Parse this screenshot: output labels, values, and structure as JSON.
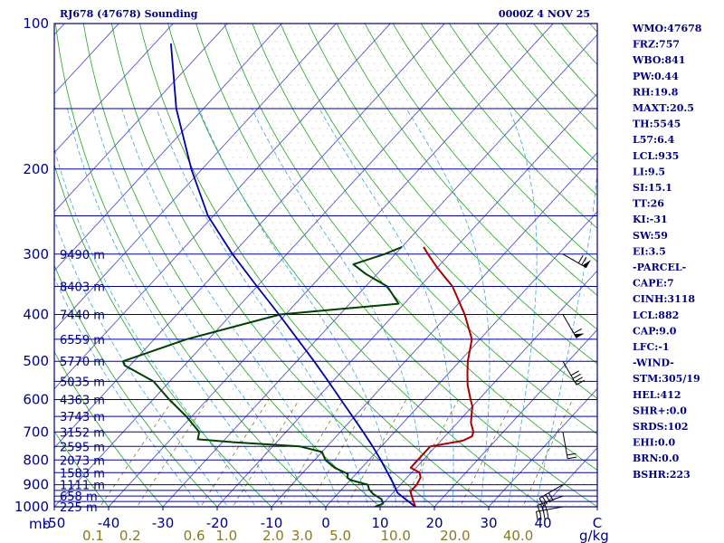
{
  "header": {
    "station": "RJ678 (47678) Sounding",
    "time": "0000Z  4 NOV 25"
  },
  "axis": {
    "p_unit": "mb",
    "mix_unit": "g/kg"
  },
  "indices": [
    "WMO:47678",
    "FRZ:757",
    "WBO:841",
    "PW:0.44",
    "RH:19.8",
    "MAXT:20.5",
    "TH:5545",
    "L57:6.4",
    "LCL:935",
    "LI:9.5",
    "SI:15.1",
    "TT:26",
    "KI:-31",
    "SW:59",
    "EI:3.5",
    "-PARCEL-",
    "CAPE:7",
    "CINH:3118",
    "LCL:882",
    "CAP:9.0",
    "LFC:-1",
    "-WIND-",
    "STM:305/19",
    "HEL:412",
    "SHR+:0.0",
    "SRDS:102",
    "EHI:0.0",
    "BRN:0.0",
    "BSHR:223"
  ],
  "chart_data": {
    "type": "line",
    "title": "RJ678 (47678) Sounding",
    "subtitle": "0000Z  4 NOV 25",
    "ylabel": "mb",
    "xlabel": "",
    "p_range": [
      1000,
      100
    ],
    "t_range": [
      -50,
      50
    ],
    "log_pressure": true,
    "grid": true,
    "pressure_ticks": [
      {
        "p": 100,
        "label": "100"
      },
      {
        "p": 200,
        "label": "200"
      },
      {
        "p": 300,
        "label": "300"
      },
      {
        "p": 400,
        "label": "400"
      },
      {
        "p": 500,
        "label": "500"
      },
      {
        "p": 600,
        "label": "600"
      },
      {
        "p": 700,
        "label": "700"
      },
      {
        "p": 800,
        "label": "800"
      },
      {
        "p": 900,
        "label": "900"
      },
      {
        "p": 1000,
        "label": "1000"
      }
    ],
    "temperature_ticks": [
      {
        "t": -50,
        "label": "-50"
      },
      {
        "t": -40,
        "label": "-40"
      },
      {
        "t": -30,
        "label": "-30"
      },
      {
        "t": -20,
        "label": "-20"
      },
      {
        "t": -10,
        "label": "-10"
      },
      {
        "t": 0,
        "label": "0"
      },
      {
        "t": 10,
        "label": "10"
      },
      {
        "t": 20,
        "label": "20"
      },
      {
        "t": 30,
        "label": "30"
      },
      {
        "t": 40,
        "label": "40"
      },
      {
        "t": 50,
        "label": "C"
      }
    ],
    "mixing_ratio_labels": [
      "0.1",
      "0.2",
      "0.6",
      "1.0",
      "2.0",
      "3.0",
      "5.0",
      "10.0",
      "20.0",
      "40.0"
    ],
    "height_labels": [
      {
        "p": 300,
        "label": "9490 m"
      },
      {
        "p": 350,
        "label": "8403 m"
      },
      {
        "p": 400,
        "label": "7440 m"
      },
      {
        "p": 450,
        "label": "6559 m"
      },
      {
        "p": 500,
        "label": "5770 m"
      },
      {
        "p": 550,
        "label": "5035 m"
      },
      {
        "p": 600,
        "label": "4363 m"
      },
      {
        "p": 650,
        "label": "3743 m"
      },
      {
        "p": 700,
        "label": "3152 m"
      },
      {
        "p": 750,
        "label": "2595 m"
      },
      {
        "p": 800,
        "label": "2073 m"
      },
      {
        "p": 850,
        "label": "1583 m"
      },
      {
        "p": 900,
        "label": "1111 m"
      },
      {
        "p": 950,
        "label": "658 m"
      },
      {
        "p": 1000,
        "label": "225 m"
      }
    ],
    "temperature_profile": {
      "color": "#aa0000",
      "points": [
        {
          "p": 1000,
          "t": 16.5
        },
        {
          "p": 980,
          "t": 15.5
        },
        {
          "p": 960,
          "t": 14.5
        },
        {
          "p": 930,
          "t": 13
        },
        {
          "p": 900,
          "t": 13
        },
        {
          "p": 870,
          "t": 12.5
        },
        {
          "p": 850,
          "t": 11.5
        },
        {
          "p": 830,
          "t": 9
        },
        {
          "p": 800,
          "t": 9
        },
        {
          "p": 780,
          "t": 9
        },
        {
          "p": 750,
          "t": 9
        },
        {
          "p": 730,
          "t": 14
        },
        {
          "p": 715,
          "t": 15
        },
        {
          "p": 700,
          "t": 14.5
        },
        {
          "p": 670,
          "t": 12.5
        },
        {
          "p": 640,
          "t": 11
        },
        {
          "p": 620,
          "t": 10
        },
        {
          "p": 600,
          "t": 8.5
        },
        {
          "p": 560,
          "t": 5.5
        },
        {
          "p": 530,
          "t": 3.5
        },
        {
          "p": 500,
          "t": 1.5
        },
        {
          "p": 450,
          "t": -1.5
        },
        {
          "p": 400,
          "t": -7
        },
        {
          "p": 350,
          "t": -14
        },
        {
          "p": 320,
          "t": -20
        },
        {
          "p": 300,
          "t": -24
        },
        {
          "p": 290,
          "t": -26
        }
      ]
    },
    "dewpoint_profile": {
      "color": "#004000",
      "points": [
        {
          "p": 1000,
          "t": 9
        },
        {
          "p": 985,
          "t": 10
        },
        {
          "p": 965,
          "t": 9
        },
        {
          "p": 940,
          "t": 6.5
        },
        {
          "p": 920,
          "t": 5
        },
        {
          "p": 900,
          "t": 4
        },
        {
          "p": 880,
          "t": 0
        },
        {
          "p": 870,
          "t": -1
        },
        {
          "p": 855,
          "t": -1.5
        },
        {
          "p": 830,
          "t": -5
        },
        {
          "p": 800,
          "t": -8
        },
        {
          "p": 770,
          "t": -10
        },
        {
          "p": 750,
          "t": -15
        },
        {
          "p": 735,
          "t": -28
        },
        {
          "p": 725,
          "t": -35
        },
        {
          "p": 700,
          "t": -36
        },
        {
          "p": 650,
          "t": -41
        },
        {
          "p": 600,
          "t": -47
        },
        {
          "p": 550,
          "t": -53
        },
        {
          "p": 510,
          "t": -61
        },
        {
          "p": 500,
          "t": -62
        },
        {
          "p": 450,
          "t": -54
        },
        {
          "p": 400,
          "t": -41
        },
        {
          "p": 380,
          "t": -21
        },
        {
          "p": 350,
          "t": -26
        },
        {
          "p": 330,
          "t": -32
        },
        {
          "p": 315,
          "t": -36
        },
        {
          "p": 300,
          "t": -32
        },
        {
          "p": 290,
          "t": -30
        }
      ]
    },
    "parcel_profile": {
      "color": "#0000a0",
      "points": [
        {
          "p": 1000,
          "t": 16.5
        },
        {
          "p": 960,
          "t": 13
        },
        {
          "p": 935,
          "t": 10.8
        },
        {
          "p": 900,
          "t": 8.8
        },
        {
          "p": 850,
          "t": 5.6
        },
        {
          "p": 800,
          "t": 2.2
        },
        {
          "p": 750,
          "t": -1.6
        },
        {
          "p": 700,
          "t": -5.8
        },
        {
          "p": 650,
          "t": -10.4
        },
        {
          "p": 600,
          "t": -15.4
        },
        {
          "p": 550,
          "t": -20.8
        },
        {
          "p": 500,
          "t": -26.8
        },
        {
          "p": 450,
          "t": -33.6
        },
        {
          "p": 400,
          "t": -41.2
        },
        {
          "p": 350,
          "t": -50
        },
        {
          "p": 300,
          "t": -60
        },
        {
          "p": 250,
          "t": -71
        },
        {
          "p": 200,
          "t": -82
        },
        {
          "p": 150,
          "t": -95
        },
        {
          "p": 110,
          "t": -107
        }
      ]
    },
    "wind_barbs": [
      {
        "p": 1000,
        "dir": 80,
        "speed": 40
      },
      {
        "p": 950,
        "dir": 70,
        "speed": 30
      },
      {
        "p": 900,
        "dir": 60,
        "speed": 40
      },
      {
        "p": 700,
        "dir": 350,
        "speed": 20
      },
      {
        "p": 500,
        "dir": 330,
        "speed": 40
      },
      {
        "p": 400,
        "dir": 330,
        "speed": 60
      },
      {
        "p": 300,
        "dir": 300,
        "speed": 70
      }
    ]
  }
}
